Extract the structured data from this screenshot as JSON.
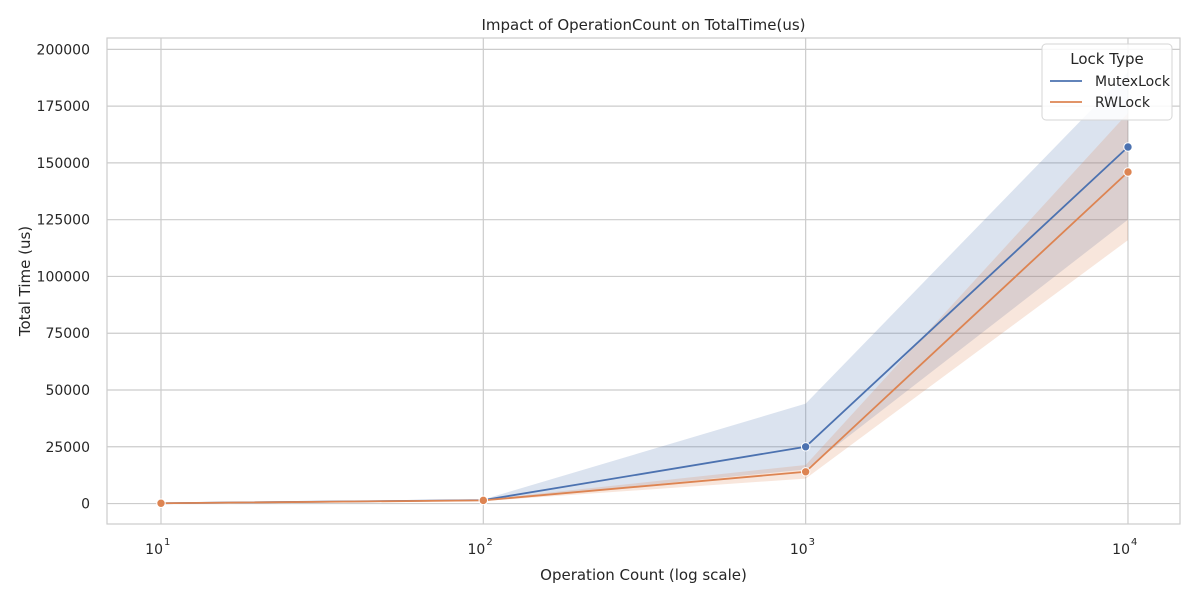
{
  "chart_data": {
    "type": "line",
    "title": "Impact of OperationCount on TotalTime(us)",
    "xlabel": "Operation Count (log scale)",
    "ylabel": "Total Time (us)",
    "x_scale": "log",
    "x": [
      10,
      100,
      1000,
      10000
    ],
    "x_tick_labels": [
      {
        "base": "10",
        "exp": "1"
      },
      {
        "base": "10",
        "exp": "2"
      },
      {
        "base": "10",
        "exp": "3"
      },
      {
        "base": "10",
        "exp": "4"
      }
    ],
    "y_ticks": [
      0,
      25000,
      50000,
      75000,
      100000,
      125000,
      150000,
      175000,
      200000
    ],
    "ylim": [
      -9000,
      205000
    ],
    "grid": true,
    "legend": {
      "title": "Lock Type",
      "position": "top-right"
    },
    "series": [
      {
        "name": "MutexLock",
        "color": "#4c72b0",
        "values": [
          150,
          1500,
          25000,
          157000
        ],
        "ci_low": [
          100,
          1200,
          15000,
          125000
        ],
        "ci_high": [
          200,
          1800,
          44000,
          190000
        ]
      },
      {
        "name": "RWLock",
        "color": "#dd8452",
        "values": [
          140,
          1400,
          14000,
          146000
        ],
        "ci_low": [
          90,
          1100,
          11000,
          116000
        ],
        "ci_high": [
          190,
          1700,
          17000,
          172000
        ]
      }
    ]
  }
}
